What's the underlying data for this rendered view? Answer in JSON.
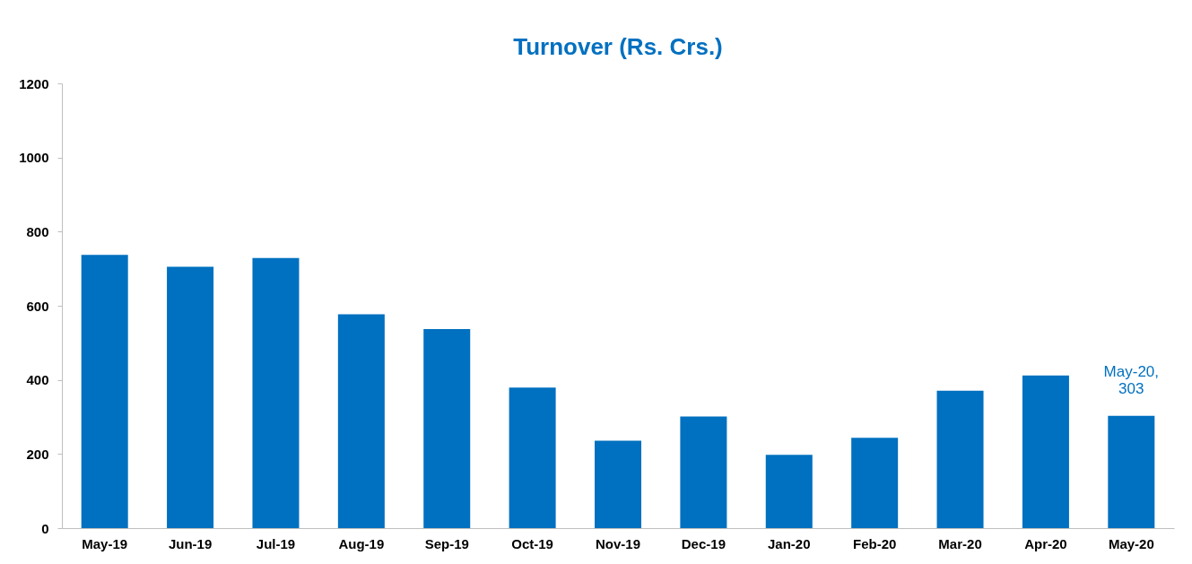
{
  "chart_data": {
    "type": "bar",
    "title": "Turnover (Rs. Crs.)",
    "categories": [
      "May-19",
      "Jun-19",
      "Jul-19",
      "Aug-19",
      "Sep-19",
      "Oct-19",
      "Nov-19",
      "Dec-19",
      "Jan-20",
      "Feb-20",
      "Mar-20",
      "Apr-20",
      "May-20"
    ],
    "values": [
      737,
      705,
      729,
      577,
      537,
      379,
      236,
      301,
      198,
      244,
      371,
      412,
      303
    ],
    "color": "#0070c0",
    "ylim": [
      0,
      1200
    ],
    "yticks": [
      0,
      200,
      400,
      600,
      800,
      1000,
      1200
    ],
    "grid": false,
    "annotations": [
      {
        "text": "May-20, 303",
        "x": "May-20",
        "y": 303
      }
    ]
  }
}
